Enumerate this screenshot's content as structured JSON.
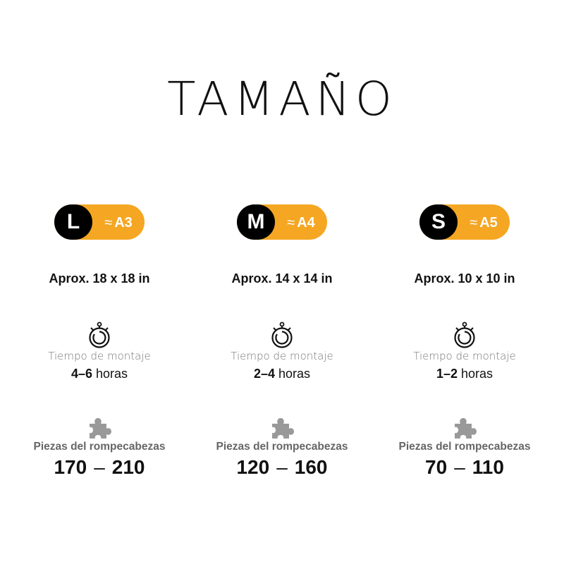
{
  "title": "TAMAÑO",
  "colors": {
    "accent": "#f5a623",
    "badge_dark": "#000000",
    "icon_gray": "#999999"
  },
  "icons": {
    "timer": "stopwatch-icon",
    "pieces": "puzzle-piece-icon"
  },
  "labels": {
    "time": "Tiempo de montaje",
    "pieces": "Piezas del rompecabezas",
    "approx_symbol": "≈",
    "hours_unit": "horas",
    "range_dash": "–"
  },
  "sizes": [
    {
      "letter": "L",
      "paper": "A3",
      "dimensions": "Aprox. 18 x 18 in",
      "hours": "4–6",
      "pieces_min": "170",
      "pieces_max": "210"
    },
    {
      "letter": "M",
      "paper": "A4",
      "dimensions": "Aprox. 14 x 14 in",
      "hours": "2–4",
      "pieces_min": "120",
      "pieces_max": "160"
    },
    {
      "letter": "S",
      "paper": "A5",
      "dimensions": "Aprox. 10 x 10 in",
      "hours": "1–2",
      "pieces_min": "70",
      "pieces_max": "110"
    }
  ]
}
